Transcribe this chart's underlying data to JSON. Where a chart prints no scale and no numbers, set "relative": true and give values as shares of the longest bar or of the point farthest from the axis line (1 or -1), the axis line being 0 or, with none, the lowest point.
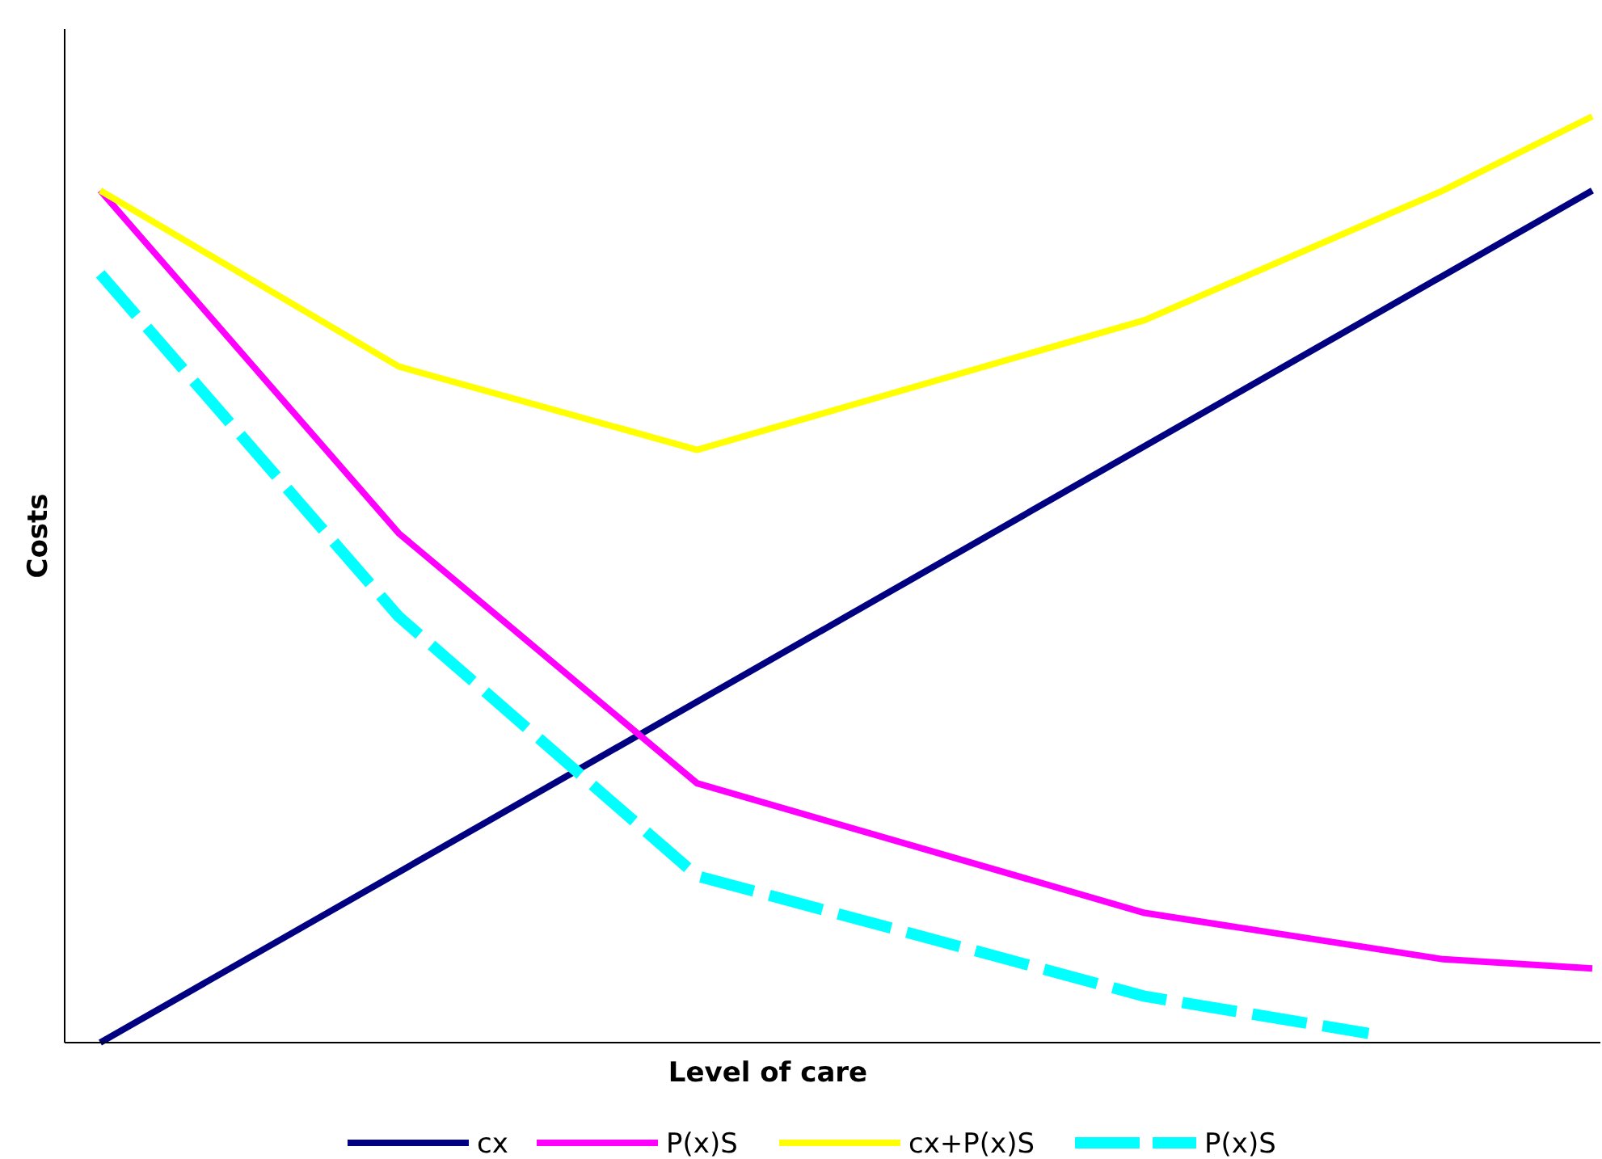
{
  "chart_data": {
    "type": "line",
    "relative": true,
    "xlabel": "Level of care",
    "ylabel": "Costs",
    "legend": "bottom",
    "grid": false,
    "categories": [
      null,
      null,
      null,
      null,
      null,
      null,
      null,
      null,
      null,
      null,
      null,
      null,
      null,
      null,
      null,
      null,
      null,
      null,
      null,
      null,
      null
    ],
    "series": [
      {
        "name": "cx",
        "color": "#000080",
        "line_style": "solid",
        "values": [
          0,
          null,
          null,
          null,
          null,
          null,
          null,
          null,
          null,
          null,
          null,
          null,
          null,
          null,
          null,
          null,
          null,
          null,
          null,
          null,
          0.92
        ]
      },
      {
        "name": "P(x)S",
        "color": "#ff00ff",
        "line_style": "solid",
        "values": [
          0.92,
          null,
          null,
          null,
          0.55,
          null,
          null,
          null,
          0.28,
          null,
          null,
          null,
          null,
          null,
          0.14,
          null,
          null,
          null,
          0.09,
          null,
          0.08
        ]
      },
      {
        "name": "cx+P(x)S",
        "color": "#ffff00",
        "line_style": "solid",
        "values": [
          0.92,
          null,
          null,
          null,
          0.73,
          null,
          null,
          null,
          0.64,
          null,
          null,
          null,
          null,
          null,
          0.78,
          null,
          null,
          null,
          0.92,
          null,
          1
        ]
      },
      {
        "name": "P(x)S",
        "color": "#00ffff",
        "line_style": "dashed",
        "values": [
          0.83,
          null,
          null,
          null,
          0.46,
          null,
          null,
          null,
          0.18,
          null,
          null,
          null,
          null,
          null,
          0.05,
          null,
          null,
          0.01,
          null,
          null,
          null
        ]
      }
    ]
  }
}
